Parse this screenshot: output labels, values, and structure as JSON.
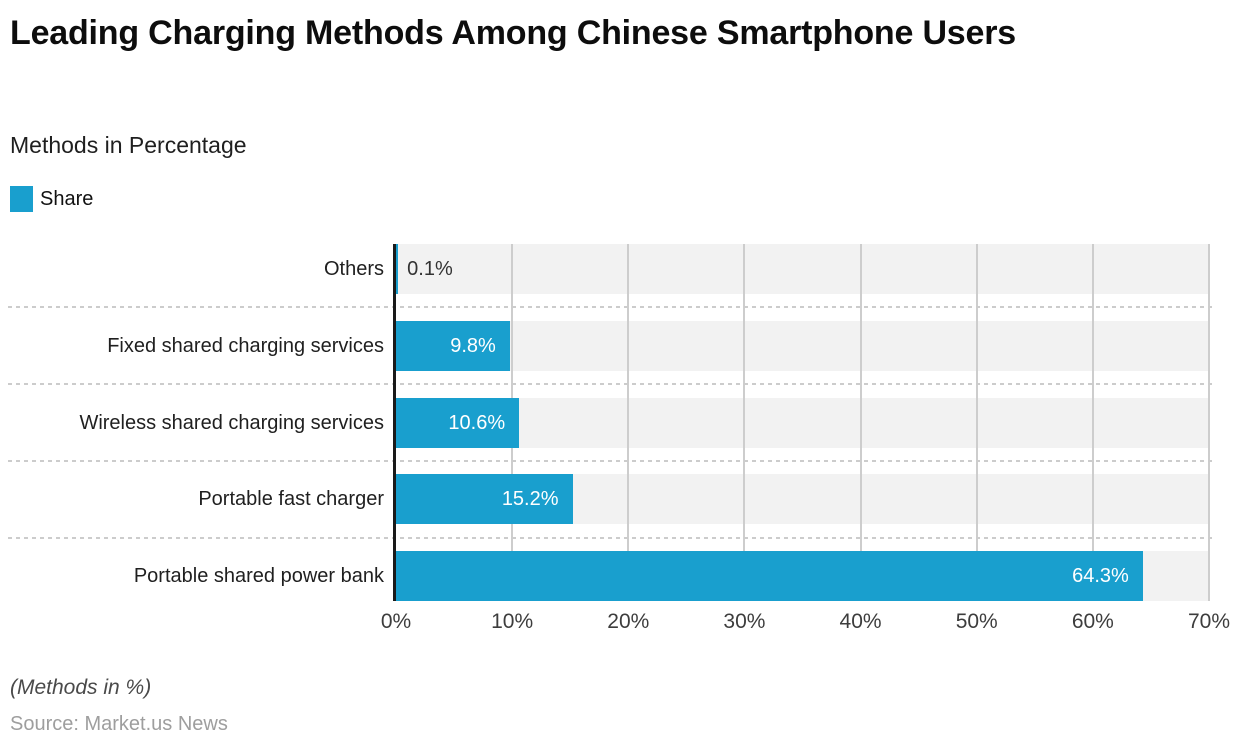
{
  "header": {
    "title": "Leading Charging Methods Among Chinese Smartphone Users",
    "subtitle": "Methods in Percentage"
  },
  "legend": {
    "label": "Share",
    "color": "#199FCE"
  },
  "chart_data": {
    "type": "bar",
    "orientation": "horizontal",
    "title": "Leading Charging Methods Among Chinese Smartphone Users",
    "subtitle": "Methods in Percentage",
    "categories": [
      "Others",
      "Fixed shared charging services",
      "Wireless shared charging services",
      "Portable fast charger",
      "Portable shared power bank"
    ],
    "series": [
      {
        "name": "Share",
        "values": [
          0.1,
          9.8,
          10.6,
          15.2,
          64.3
        ]
      }
    ],
    "value_labels": [
      "0.1%",
      "9.8%",
      "10.6%",
      "15.2%",
      "64.3%"
    ],
    "xlim": [
      0,
      70
    ],
    "x_ticks": [
      0,
      10,
      20,
      30,
      40,
      50,
      60,
      70
    ],
    "x_tick_labels": [
      "0%",
      "10%",
      "20%",
      "30%",
      "40%",
      "50%",
      "60%",
      "70%"
    ],
    "grid": true,
    "legend_position": "top-left",
    "colors": {
      "bar": "#199FCE",
      "row_band": "#f2f2f2",
      "axis_line": "#1a1a1a",
      "gridline": "#cdcdcd",
      "value_label_inside": "#ffffff",
      "value_label_outside": "#333333"
    }
  },
  "footer": {
    "note": "(Methods in %)",
    "source": "Source: Market.us News"
  }
}
